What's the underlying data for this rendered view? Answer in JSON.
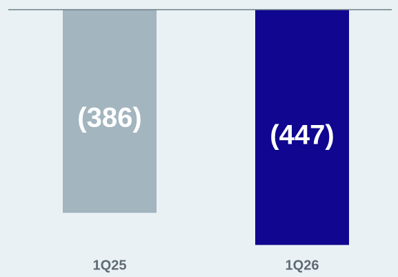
{
  "chart_data": {
    "type": "bar",
    "categories": [
      "1Q25",
      "1Q26"
    ],
    "values": [
      -386,
      -447
    ],
    "value_labels": [
      "(386)",
      "(447)"
    ],
    "colors": [
      "#a3b5bf",
      "#10068f"
    ],
    "ylim": [
      -500,
      0
    ]
  }
}
